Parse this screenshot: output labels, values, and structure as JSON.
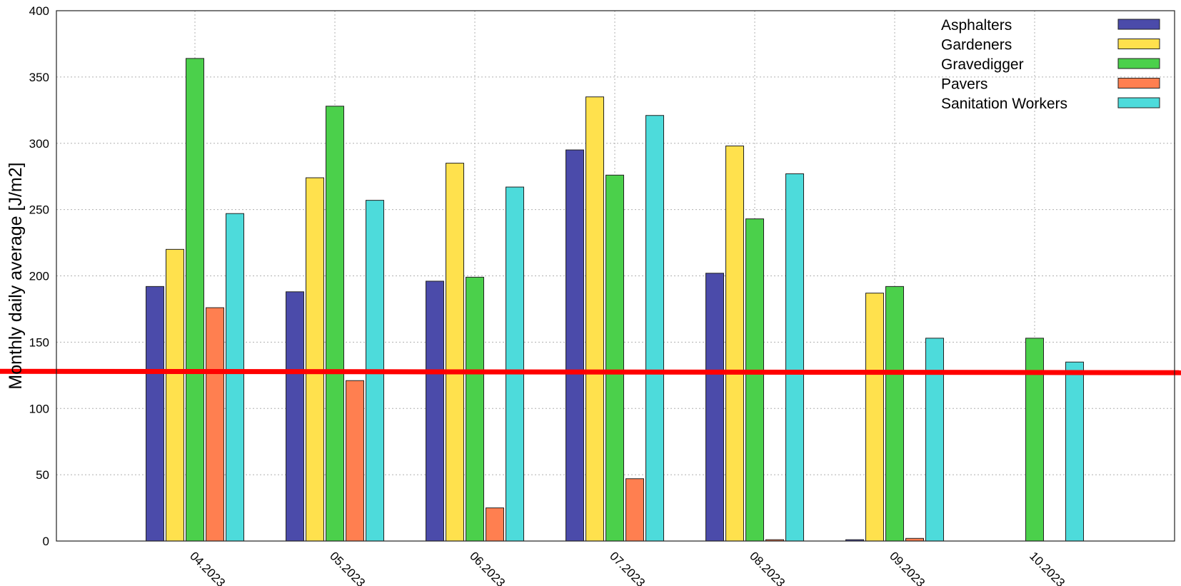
{
  "chart_data": {
    "type": "bar",
    "title": "",
    "xlabel": "",
    "ylabel": "Monthly daily average [J/m2]",
    "ylim": [
      0,
      400
    ],
    "yticks": [
      0,
      50,
      100,
      150,
      200,
      250,
      300,
      350,
      400
    ],
    "grid": true,
    "legend_position": "top-right",
    "categories": [
      "04.2023",
      "05.2023",
      "06.2023",
      "07.2023",
      "08.2023",
      "09.2023",
      "10.2023"
    ],
    "series": [
      {
        "name": "Asphalters",
        "color": "#4b4baa",
        "values": [
          192,
          188,
          196,
          295,
          202,
          1,
          null
        ]
      },
      {
        "name": "Gardeners",
        "color": "#ffe14d",
        "values": [
          220,
          274,
          285,
          335,
          298,
          187,
          null
        ]
      },
      {
        "name": "Gravedigger",
        "color": "#4bd04b",
        "values": [
          364,
          328,
          199,
          276,
          243,
          192,
          153
        ]
      },
      {
        "name": "Pavers",
        "color": "#ff7f50",
        "values": [
          176,
          121,
          25,
          47,
          1,
          2,
          null
        ]
      },
      {
        "name": "Sanitation Workers",
        "color": "#4ddbdb",
        "values": [
          247,
          257,
          267,
          321,
          277,
          153,
          135
        ]
      }
    ],
    "reference_line": {
      "color": "#ff0000",
      "y_start": 128,
      "y_end": 127
    }
  }
}
